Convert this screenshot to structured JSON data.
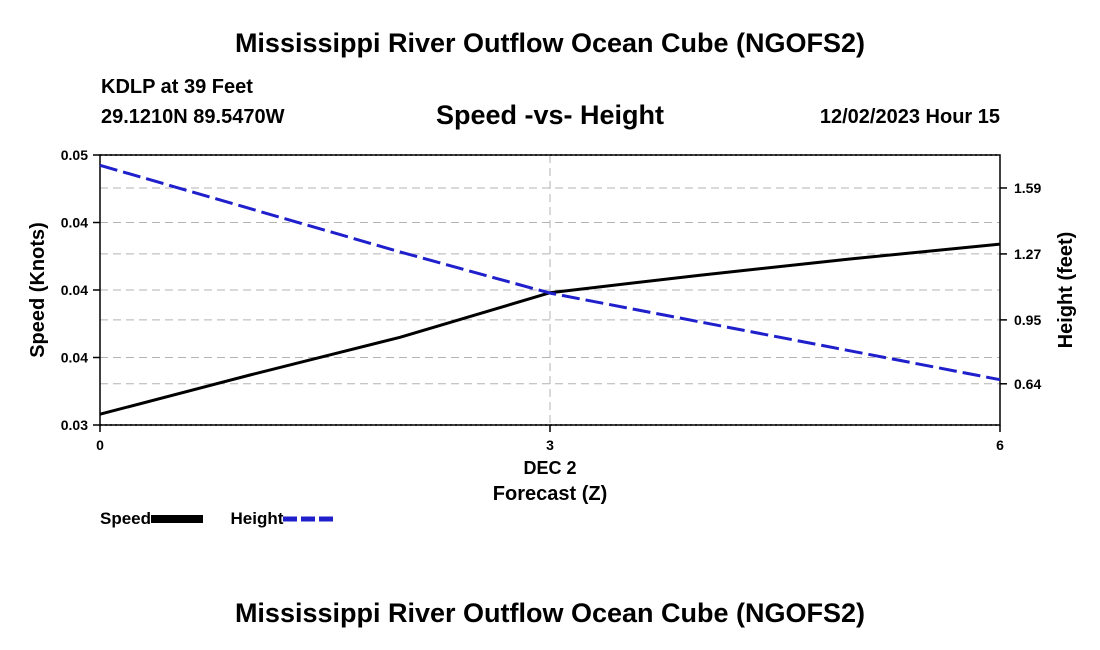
{
  "page": {
    "title": "Mississippi River Outflow Ocean Cube (NGOFS2)",
    "footer_title": "Mississippi River Outflow Ocean Cube (NGOFS2)",
    "station": "KDLP at 39 Feet",
    "coords": "29.1210N  89.5470W",
    "subtitle": "Speed -vs- Height",
    "datetime": "12/02/2023 Hour 15"
  },
  "legend": {
    "speed_label": "Speed",
    "height_label": "Height"
  },
  "colors": {
    "speed": "#000000",
    "height": "#1f1fcc",
    "grid": "#b3b3b3"
  },
  "chart_data": {
    "type": "line",
    "title": "Speed -vs- Height",
    "xlabel": "Forecast (Z)",
    "x_date_label": "DEC 2",
    "ylabel_left": "Speed (Knots)",
    "ylabel_right": "Height (feet)",
    "x": [
      0,
      1,
      2,
      3,
      4,
      5,
      6
    ],
    "xlim": [
      0,
      6
    ],
    "xticks": [
      0,
      3,
      6
    ],
    "ylim_left": [
      0.03,
      0.05
    ],
    "yticks_left": [
      0.03,
      0.035,
      0.04,
      0.045,
      0.05
    ],
    "ytick_labels_left": [
      "0.03",
      "0.04",
      "0.04",
      "0.04",
      "0.05"
    ],
    "ylim_right": [
      0.44,
      1.75
    ],
    "yticks_right": [
      0.64,
      0.95,
      1.27,
      1.59
    ],
    "ytick_labels_right": [
      "0.64",
      "0.95",
      "1.27",
      "1.59"
    ],
    "series": [
      {
        "name": "Speed",
        "axis": "left",
        "style": "solid",
        "values": [
          0.0308,
          0.0337,
          0.0365,
          0.0398,
          0.0411,
          0.0423,
          0.0434
        ]
      },
      {
        "name": "Height",
        "axis": "right",
        "style": "dashed",
        "values": [
          1.7,
          1.49,
          1.28,
          1.08,
          0.94,
          0.8,
          0.66
        ]
      }
    ]
  }
}
